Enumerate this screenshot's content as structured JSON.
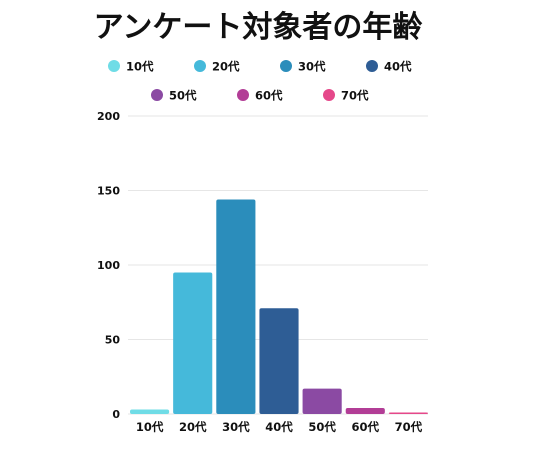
{
  "chart_data": {
    "type": "bar",
    "title": "アンケート対象者の年齢",
    "categories": [
      "10代",
      "20代",
      "30代",
      "40代",
      "50代",
      "60代",
      "70代"
    ],
    "values": [
      3,
      95,
      144,
      71,
      17,
      4,
      1
    ],
    "colors": [
      "#6fdce6",
      "#45b9da",
      "#2b8dbb",
      "#2e5d95",
      "#8b4aa3",
      "#b23d96",
      "#e5488a"
    ],
    "ylim": [
      0,
      200
    ],
    "yticks": [
      0,
      50,
      100,
      150,
      200
    ],
    "grid": true,
    "legend": "top-center",
    "xlabel": "",
    "ylabel": ""
  }
}
